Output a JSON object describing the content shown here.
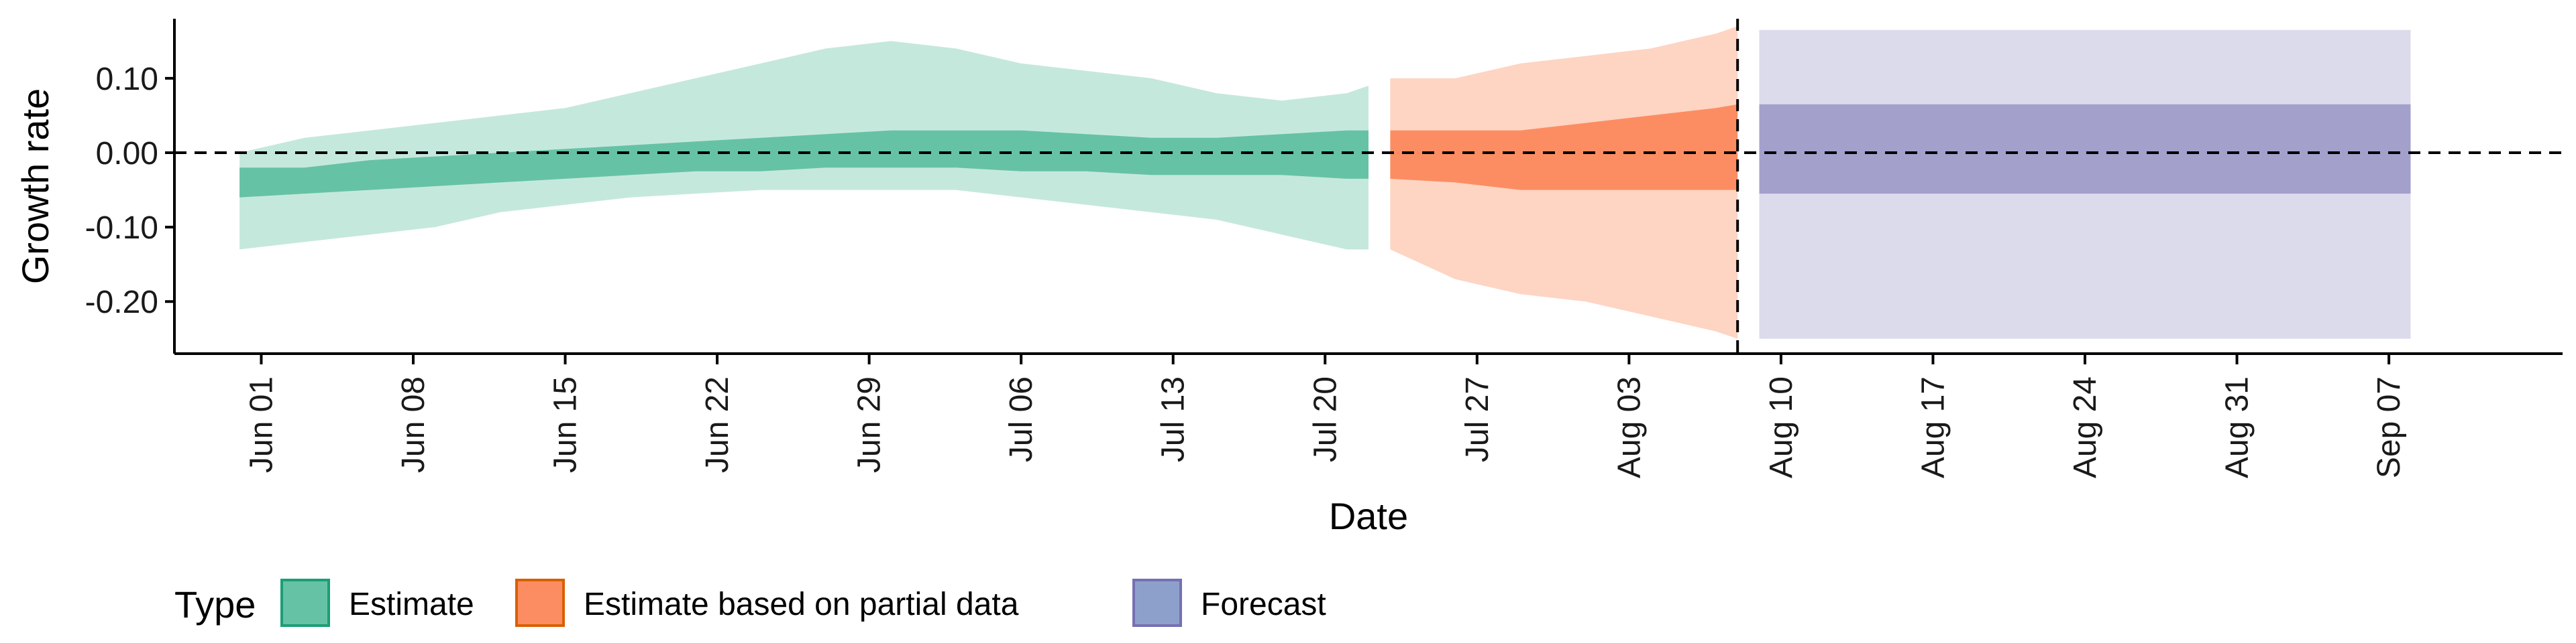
{
  "chart_data": {
    "type": "area",
    "title": "",
    "xlabel": "Date",
    "ylabel": "Growth rate",
    "ylim": [
      -0.27,
      0.18
    ],
    "xlim": [
      "2020-05-28",
      "2020-09-15"
    ],
    "x_ticks": [
      "2020-06-01",
      "2020-06-08",
      "2020-06-15",
      "2020-06-22",
      "2020-06-29",
      "2020-07-06",
      "2020-07-13",
      "2020-07-20",
      "2020-07-27",
      "2020-08-03",
      "2020-08-10",
      "2020-08-17",
      "2020-08-24",
      "2020-08-31",
      "2020-09-07"
    ],
    "x_tick_labels": [
      "Jun 01",
      "Jun 08",
      "Jun 15",
      "Jun 22",
      "Jun 29",
      "Jul 06",
      "Jul 13",
      "Jul 20",
      "Jul 27",
      "Aug 03",
      "Aug 10",
      "Aug 17",
      "Aug 24",
      "Aug 31",
      "Sep 07"
    ],
    "y_ticks": [
      0.1,
      0.0,
      -0.1,
      -0.2
    ],
    "y_tick_labels": [
      "0.10",
      "0.00",
      "-0.10",
      "-0.20"
    ],
    "hline_y": 0.0,
    "vline_x": "2020-08-08",
    "legend": {
      "title": "Type",
      "position": "bottom-left",
      "entries": [
        "Estimate",
        "Estimate based on partial data",
        "Forecast"
      ]
    },
    "grid": false,
    "colors": {
      "Estimate": "#66c2a5",
      "Estimate based on partial data": "#fc8d62",
      "Forecast": "#8da0cb",
      "Estimate_fill": "#1b9e77",
      "Estimate based on partial data_fill": "#d95f02",
      "Forecast_fill": "#7570b3"
    },
    "series": [
      {
        "name": "Estimate",
        "x": [
          "2020-05-31",
          "2020-06-03",
          "2020-06-06",
          "2020-06-09",
          "2020-06-12",
          "2020-06-15",
          "2020-06-18",
          "2020-06-21",
          "2020-06-24",
          "2020-06-27",
          "2020-06-30",
          "2020-07-03",
          "2020-07-06",
          "2020-07-09",
          "2020-07-12",
          "2020-07-15",
          "2020-07-18",
          "2020-07-21",
          "2020-07-22"
        ],
        "outer_upper": [
          0.0,
          0.02,
          0.03,
          0.04,
          0.05,
          0.06,
          0.08,
          0.1,
          0.12,
          0.14,
          0.15,
          0.14,
          0.12,
          0.11,
          0.1,
          0.08,
          0.07,
          0.08,
          0.09
        ],
        "inner_upper": [
          -0.02,
          -0.02,
          -0.01,
          -0.005,
          0.0,
          0.005,
          0.01,
          0.015,
          0.02,
          0.025,
          0.03,
          0.03,
          0.03,
          0.025,
          0.02,
          0.02,
          0.025,
          0.03,
          0.03
        ],
        "inner_lower": [
          -0.06,
          -0.055,
          -0.05,
          -0.045,
          -0.04,
          -0.035,
          -0.03,
          -0.025,
          -0.025,
          -0.02,
          -0.02,
          -0.02,
          -0.025,
          -0.025,
          -0.03,
          -0.03,
          -0.03,
          -0.035,
          -0.035
        ],
        "outer_lower": [
          -0.13,
          -0.12,
          -0.11,
          -0.1,
          -0.08,
          -0.07,
          -0.06,
          -0.055,
          -0.05,
          -0.05,
          -0.05,
          -0.05,
          -0.06,
          -0.07,
          -0.08,
          -0.09,
          -0.11,
          -0.13,
          -0.13
        ]
      },
      {
        "name": "Estimate based on partial data",
        "x": [
          "2020-07-23",
          "2020-07-26",
          "2020-07-29",
          "2020-08-01",
          "2020-08-04",
          "2020-08-07",
          "2020-08-08"
        ],
        "outer_upper": [
          0.1,
          0.1,
          0.12,
          0.13,
          0.14,
          0.16,
          0.17
        ],
        "inner_upper": [
          0.03,
          0.03,
          0.03,
          0.04,
          0.05,
          0.06,
          0.065
        ],
        "inner_lower": [
          -0.035,
          -0.04,
          -0.05,
          -0.05,
          -0.05,
          -0.05,
          -0.05
        ],
        "outer_lower": [
          -0.13,
          -0.17,
          -0.19,
          -0.2,
          -0.22,
          -0.24,
          -0.25
        ]
      },
      {
        "name": "Forecast",
        "x": [
          "2020-08-09",
          "2020-09-08"
        ],
        "outer_upper": [
          0.165,
          0.165
        ],
        "inner_upper": [
          0.065,
          0.065
        ],
        "inner_lower": [
          -0.055,
          -0.055
        ],
        "outer_lower": [
          -0.25,
          -0.25
        ]
      }
    ]
  }
}
